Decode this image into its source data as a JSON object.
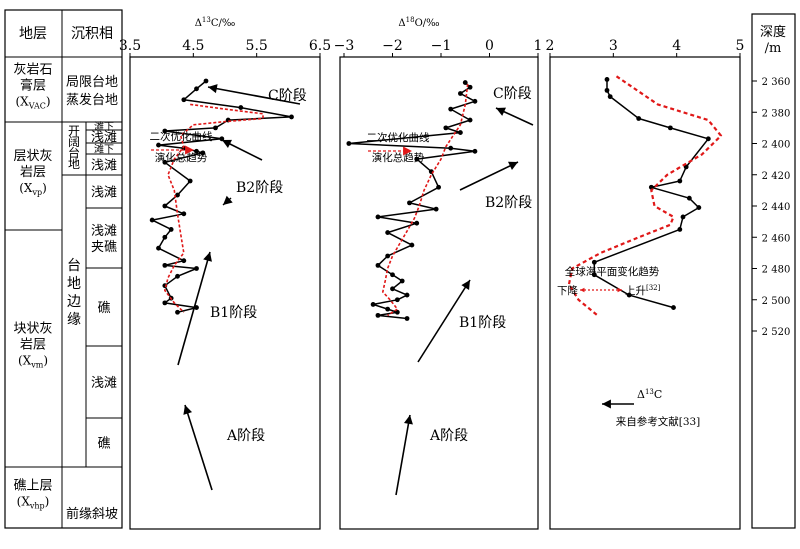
{
  "strat": {
    "header_layer": "地层",
    "header_facies": "沉积相",
    "layers": [
      {
        "name": "灰岩石\n膏层",
        "code": "(X",
        "sub": "VAC",
        "close": ")"
      },
      {
        "name": "层状灰\n岩层",
        "code": "(X",
        "sub": "vp",
        "close": ")"
      },
      {
        "name": "块状灰\n岩层",
        "code": "(X",
        "sub": "vm",
        "close": ")"
      },
      {
        "name": "礁上层",
        "code": "(X",
        "sub": "vhp",
        "close": ")"
      }
    ],
    "facies_main": [
      "局限台地\n蒸发台地",
      "开\n阔\n台\n地",
      "台\n地\n边\n缘",
      "前缘斜坡"
    ],
    "facies_sub": [
      "滩下",
      "浅滩",
      "滩下",
      "浅滩",
      "浅滩",
      "浅滩\n夹礁",
      "礁",
      "浅滩",
      "礁"
    ]
  },
  "depth_axis": {
    "title": "深度\n/m",
    "ticks": [
      "2 360",
      "2 380",
      "2 400",
      "2 420",
      "2 440",
      "2 460",
      "2 480",
      "2 500",
      "2 520"
    ]
  },
  "chart_data": [
    {
      "type": "line",
      "title": "Δ13C/‰",
      "title_parts": [
        "Δ",
        "13",
        "C/‰"
      ],
      "xlim": [
        3.5,
        6.5
      ],
      "ylim": [
        2350,
        2525
      ],
      "xticks": [
        "3.5",
        "4.5",
        "5.5",
        "6.5"
      ],
      "series": [
        {
          "kind": "measured",
          "x": [
            4.7,
            4.55,
            4.35,
            5.25,
            6.05,
            5.05,
            4.85,
            4.05,
            4.95,
            3.95,
            4.35,
            4.55,
            4.65,
            4.05,
            4.45,
            4.25,
            4.05,
            4.35,
            3.85,
            4.15,
            4.05,
            3.95,
            4.35,
            4.05,
            4.55,
            4.25,
            4.05,
            4.15,
            4.05,
            4.55,
            4.25
          ],
          "y": [
            2360,
            2365,
            2372,
            2377,
            2383,
            2385,
            2390,
            2392,
            2397,
            2401,
            2403,
            2405,
            2406,
            2412,
            2424,
            2433,
            2440,
            2445,
            2449,
            2455,
            2460,
            2467,
            2475,
            2478,
            2480,
            2485,
            2491,
            2499,
            2502,
            2505,
            2508
          ]
        },
        {
          "kind": "fit",
          "x": [
            4.45,
            5.0,
            5.6,
            5.6,
            5.0,
            4.5,
            4.3,
            4.35,
            4.2,
            4.1,
            4.2,
            4.25,
            4.3,
            4.35,
            4.2,
            4.1,
            4.05,
            4.2,
            4.35
          ],
          "y": [
            2375,
            2378,
            2381,
            2384,
            2386,
            2388,
            2395,
            2402,
            2410,
            2420,
            2430,
            2445,
            2458,
            2470,
            2478,
            2486,
            2494,
            2502,
            2508
          ]
        }
      ],
      "annotations": [
        "C阶段",
        "B2阶段",
        "B1阶段",
        "A阶段",
        "二次优化曲线",
        "演化总趋势"
      ]
    },
    {
      "type": "line",
      "title": "Δ18O/‰",
      "title_parts": [
        "Δ",
        "18",
        "O/‰"
      ],
      "xlim": [
        -3,
        1
      ],
      "ylim": [
        2350,
        2525
      ],
      "xticks": [
        "−3",
        "−2",
        "−1",
        "0",
        "1"
      ],
      "series": [
        {
          "kind": "measured",
          "x": [
            -0.5,
            -0.4,
            -0.6,
            -0.3,
            -0.8,
            -0.4,
            -0.9,
            -0.6,
            -2.9,
            -0.8,
            -0.3,
            -1.5,
            -1.2,
            -1.05,
            -1.65,
            -1.1,
            -2.3,
            -1.5,
            -2.1,
            -1.6,
            -2.1,
            -2.3,
            -2.0,
            -1.8,
            -2.0,
            -1.7,
            -1.9,
            -2.4,
            -2.1,
            -1.9,
            -2.3,
            -1.7
          ],
          "y": [
            2361,
            2364,
            2368,
            2373,
            2378,
            2385,
            2390,
            2393,
            2400,
            2403,
            2405,
            2410,
            2418,
            2428,
            2438,
            2442,
            2447,
            2451,
            2457,
            2465,
            2472,
            2478,
            2484,
            2488,
            2493,
            2497,
            2500,
            2503,
            2506,
            2508,
            2510,
            2512
          ]
        },
        {
          "kind": "fit",
          "x": [
            -0.45,
            -0.5,
            -0.6,
            -0.75,
            -0.9,
            -1.0,
            -1.2,
            -1.35,
            -1.45,
            -1.55,
            -1.7,
            -1.85,
            -2.0,
            -2.1,
            -2.15,
            -2.2,
            -2.05,
            -1.9,
            -2.1
          ],
          "y": [
            2362,
            2375,
            2388,
            2395,
            2402,
            2410,
            2420,
            2430,
            2440,
            2448,
            2456,
            2464,
            2472,
            2480,
            2488,
            2495,
            2500,
            2506,
            2510
          ]
        }
      ],
      "annotations": [
        "C阶段",
        "B2阶段",
        "B1阶段",
        "A阶段",
        "二次优化曲线",
        "演化总趋势"
      ]
    },
    {
      "type": "line",
      "title": "",
      "xlim": [
        2,
        5
      ],
      "ylim": [
        2350,
        2525
      ],
      "xticks": [
        "2",
        "3",
        "4",
        "5"
      ],
      "series": [
        {
          "kind": "measured",
          "name": "Δ13C",
          "x": [
            2.9,
            2.9,
            2.95,
            3.4,
            3.9,
            4.5,
            4.15,
            4.05,
            3.6,
            4.2,
            4.35,
            4.1,
            4.05,
            2.7,
            2.7,
            3.25,
            3.95
          ],
          "y": [
            2359,
            2366,
            2370,
            2384,
            2390,
            2397,
            2415,
            2424,
            2428,
            2435,
            2441,
            2447,
            2455,
            2476,
            2484,
            2497,
            2505
          ]
        },
        {
          "kind": "sea-level",
          "name": "全球海平面变化趋势",
          "x": [
            3.05,
            3.7,
            4.5,
            4.7,
            4.4,
            3.85,
            3.6,
            3.65,
            3.95,
            3.9,
            3.4,
            2.8,
            2.35,
            2.3,
            2.45,
            2.75
          ],
          "y": [
            2357,
            2375,
            2385,
            2395,
            2407,
            2420,
            2430,
            2440,
            2447,
            2452,
            2460,
            2470,
            2480,
            2490,
            2500,
            2510
          ]
        }
      ],
      "annotations": [
        "全球海平面变化趋势",
        "下降",
        "上升",
        "[32]",
        "Δ13C",
        "来自参考文献[33]"
      ]
    }
  ],
  "colors": {
    "axis": "#000000",
    "measured": "#000000",
    "fit": "#e01818",
    "trend": "#e01818"
  }
}
